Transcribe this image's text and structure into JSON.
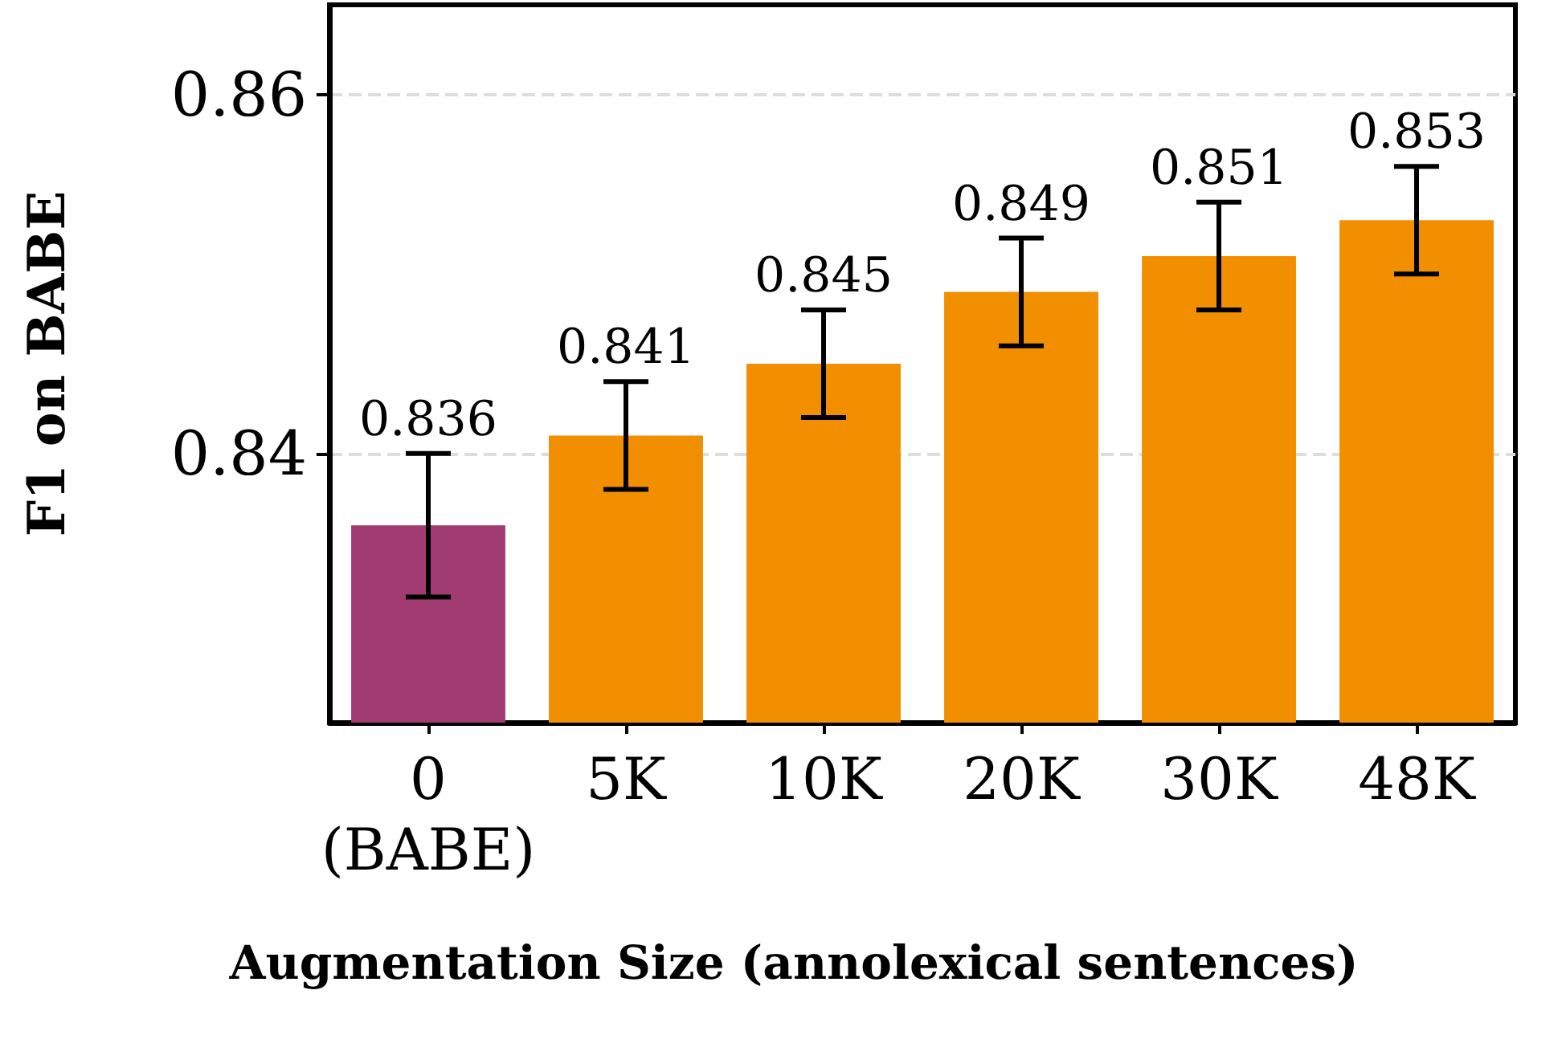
{
  "chart_data": {
    "type": "bar",
    "xlabel": "Augmentation Size (annolexical sentences)",
    "ylabel": "F1 on BABE",
    "categories": [
      "0\n(BABE)",
      "5K",
      "10K",
      "20K",
      "30K",
      "48K"
    ],
    "values": [
      0.836,
      0.841,
      0.845,
      0.849,
      0.851,
      0.853
    ],
    "colors": [
      "#a23b72",
      "#f18f01",
      "#f18f01",
      "#f18f01",
      "#f18f01",
      "#f18f01"
    ],
    "errors": [
      0.004,
      0.003,
      0.003,
      0.003,
      0.003,
      0.003
    ],
    "ylim": [
      0.825,
      0.865
    ],
    "yticks": [
      0.84,
      0.86
    ],
    "grid": "y",
    "data_labels": true
  }
}
